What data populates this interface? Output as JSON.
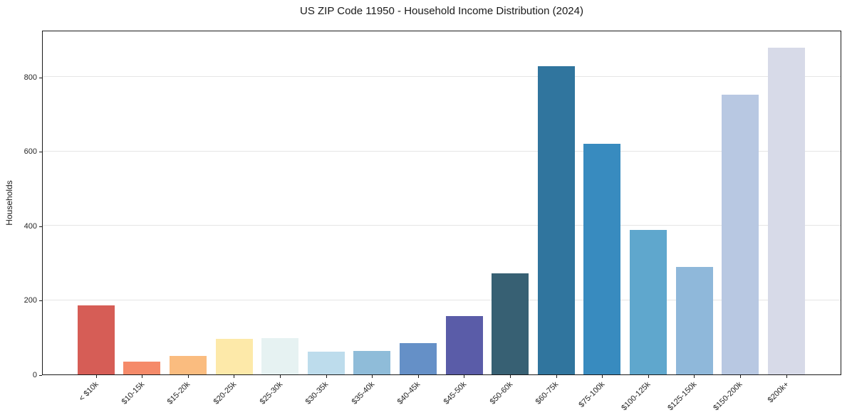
{
  "chart_data": {
    "type": "bar",
    "title": "US ZIP Code 11950 - Household Income Distribution (2024)",
    "xlabel": "",
    "ylabel": "Households",
    "categories": [
      "< $10k",
      "$10-15k",
      "$15-20k",
      "$20-25k",
      "$25-30k",
      "$30-35k",
      "$35-40k",
      "$40-45k",
      "$45-50k",
      "$50-60k",
      "$60-75k",
      "$75-100k",
      "$100-125k",
      "$125-150k",
      "$150-200k",
      "$200k+"
    ],
    "values": [
      185,
      35,
      50,
      95,
      97,
      62,
      63,
      85,
      157,
      272,
      830,
      620,
      388,
      290,
      752,
      880
    ],
    "bar_colors": [
      "#d65d56",
      "#f58a69",
      "#fabc7f",
      "#fde9a9",
      "#e6f2f2",
      "#bddcec",
      "#8fbcd9",
      "#6590c7",
      "#5a5ca8",
      "#376073",
      "#30759e",
      "#388bbf",
      "#5fa7cd",
      "#8fb8da",
      "#b8c8e2",
      "#d7dae8"
    ],
    "yticks": [
      0,
      200,
      400,
      600,
      800
    ],
    "ylim": [
      0,
      927
    ],
    "grid": "horizontal",
    "gridline_color": "#e5e5e5",
    "background_color": "#ffffff",
    "spine_color": "#1a1a1a",
    "tick_text_color": "#262626",
    "legend": "none"
  }
}
